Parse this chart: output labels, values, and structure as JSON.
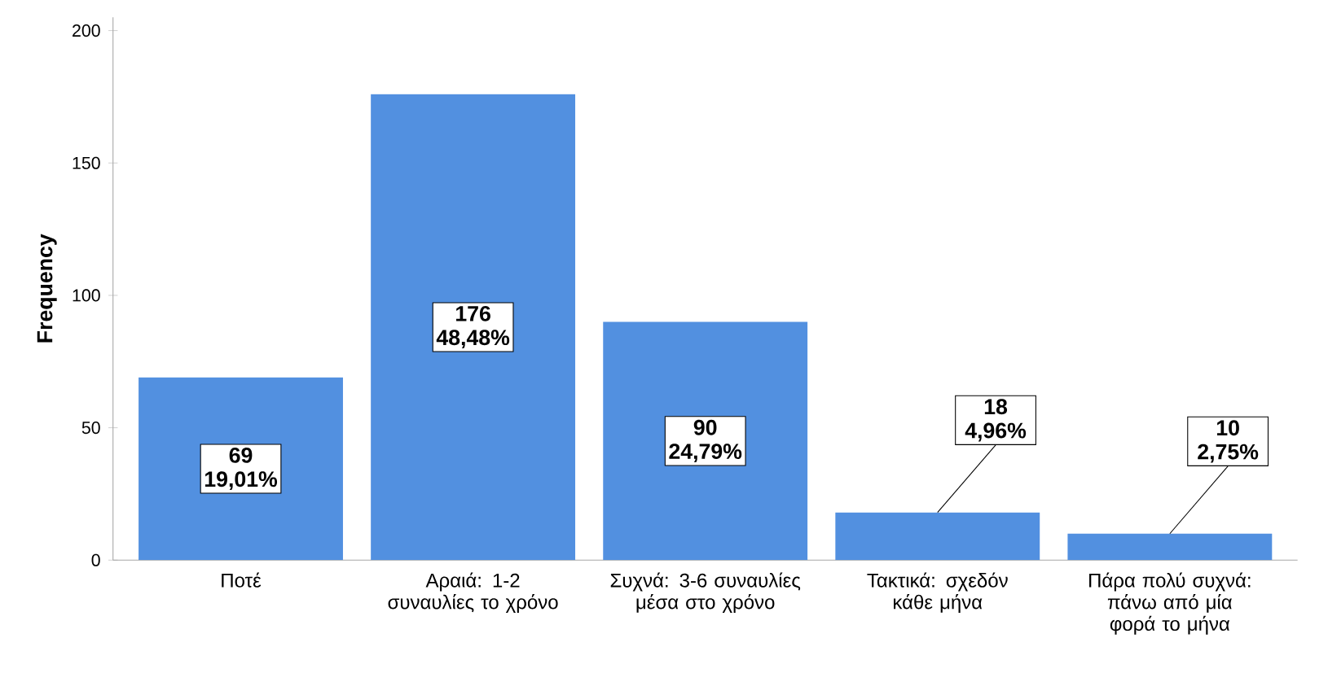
{
  "chart_data": {
    "type": "bar",
    "ylabel": "Frequency",
    "categories": [
      "Ποτέ",
      "Αραιά: 1-2 συναυλίες το χρόνο",
      "Συχνά: 3-6 συναυλίες μέσα στο χρόνο",
      "Τακτικά: σχεδόν κάθε μήνα",
      "Πάρα πολύ συχνά: πάνω από μία φορά το μήνα"
    ],
    "values": [
      69,
      176,
      90,
      18,
      10
    ],
    "value_labels": [
      "69 19,01%",
      "176 48,48%",
      "90 24,79%",
      "18 4,96%",
      "10 2,75%"
    ],
    "color": "#5290e0",
    "ylim": [
      0,
      205
    ],
    "yticks": [
      0,
      50,
      100,
      150,
      200
    ],
    "grid": false
  }
}
